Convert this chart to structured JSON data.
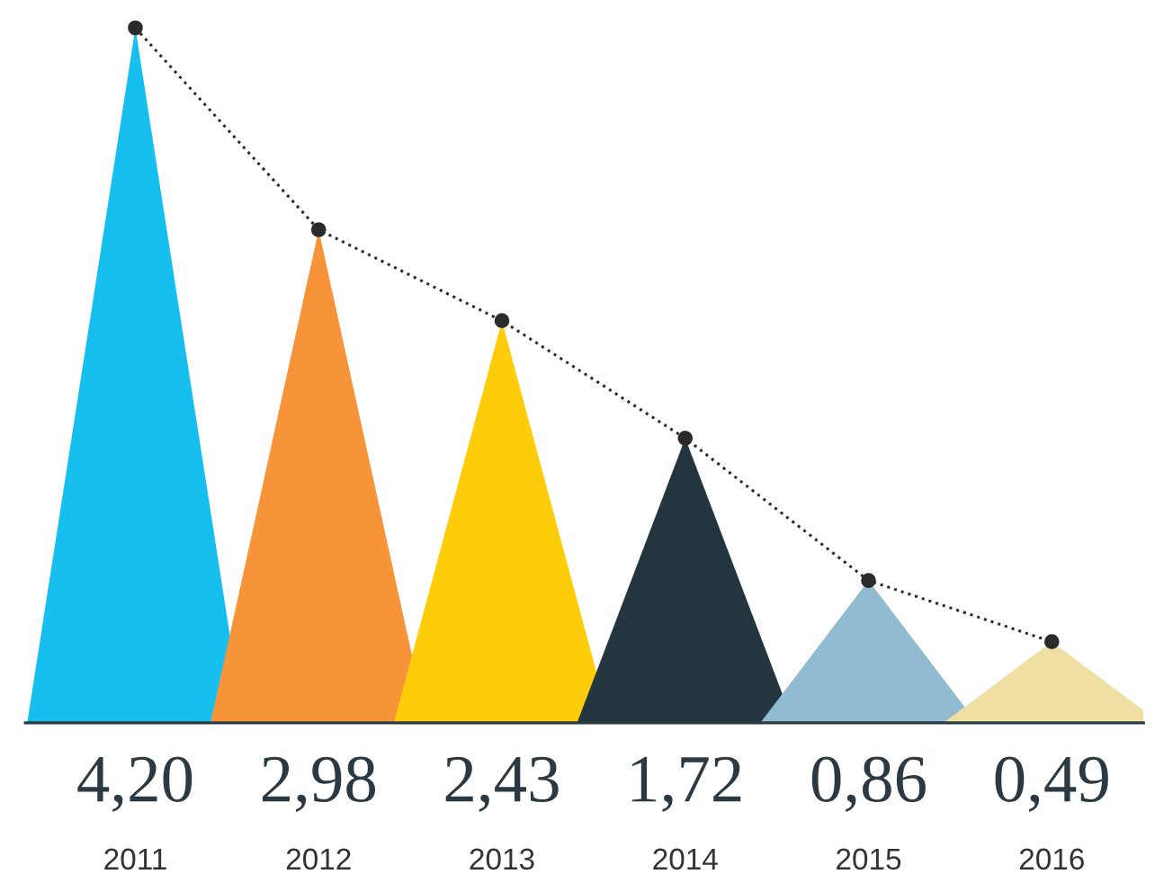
{
  "chart_data": {
    "type": "line",
    "categories": [
      "2011",
      "2012",
      "2013",
      "2014",
      "2015",
      "2016"
    ],
    "tick_labels": "x",
    "line_style": "dotted",
    "marker": "circle",
    "series": [
      {
        "values": [
          4.2,
          2.98,
          2.43,
          1.72,
          0.86,
          0.49
        ],
        "color": "#2b2b2b",
        "value_labels": [
          "4,20",
          "2,98",
          "2,43",
          "1,72",
          "0,86",
          "0,49"
        ]
      }
    ]
  }
}
